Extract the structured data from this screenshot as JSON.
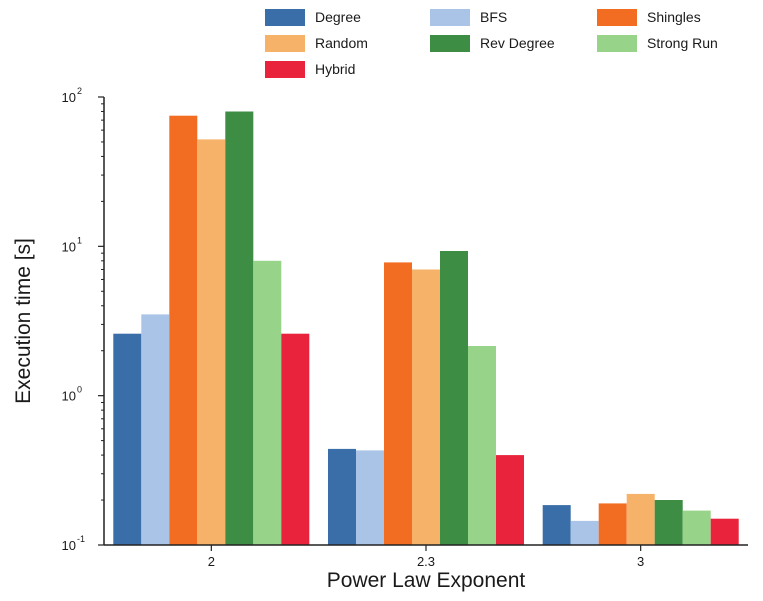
{
  "chart_data": {
    "type": "bar",
    "xlabel": "Power Law Exponent",
    "ylabel": "Execution time [s]",
    "yscale": "log",
    "ylim": [
      0.1,
      100
    ],
    "grid": false,
    "legend_placement": "top",
    "categories": [
      "2",
      "2.3",
      "3"
    ],
    "yticks": [
      {
        "value": 0.1,
        "base": "10",
        "exp": "-1"
      },
      {
        "value": 1,
        "base": "10",
        "exp": "0"
      },
      {
        "value": 10,
        "base": "10",
        "exp": "1"
      },
      {
        "value": 100,
        "base": "10",
        "exp": "2"
      }
    ],
    "series": [
      {
        "name": "Degree",
        "color": "#3a6ea8",
        "values": [
          2.6,
          0.44,
          0.185
        ]
      },
      {
        "name": "BFS",
        "color": "#a9c4e6",
        "values": [
          3.5,
          0.43,
          0.145
        ]
      },
      {
        "name": "Shingles",
        "color": "#f26d21",
        "values": [
          75,
          7.8,
          0.19
        ]
      },
      {
        "name": "Random",
        "color": "#f7b26a",
        "values": [
          52,
          7.0,
          0.22
        ]
      },
      {
        "name": "Rev Degree",
        "color": "#3d8d45",
        "values": [
          80,
          9.3,
          0.2
        ]
      },
      {
        "name": "Strong Run",
        "color": "#97d48a",
        "values": [
          8.0,
          2.15,
          0.17
        ]
      },
      {
        "name": "Hybrid",
        "color": "#e8233b",
        "values": [
          2.6,
          0.4,
          0.15
        ]
      }
    ]
  }
}
